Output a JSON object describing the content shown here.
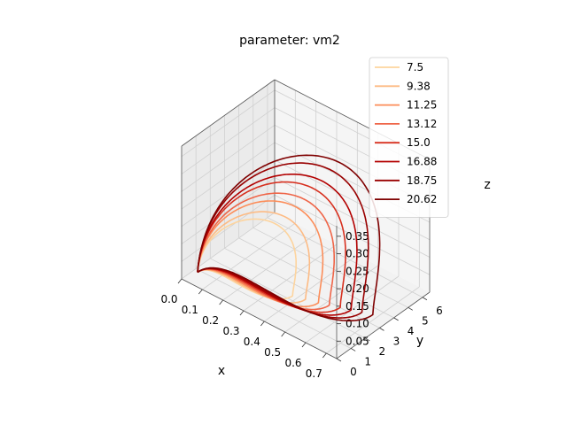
{
  "chart_data": {
    "type": "line",
    "projection": "3d",
    "title": "parameter: vm2",
    "xlabel": "x",
    "ylabel": "y",
    "zlabel": "z",
    "xlim": [
      0.0,
      0.75
    ],
    "ylim": [
      0,
      6.5
    ],
    "zlim": [
      0.0,
      0.38
    ],
    "x_ticks": [
      "0.0",
      "0.1",
      "0.2",
      "0.3",
      "0.4",
      "0.5",
      "0.6",
      "0.7"
    ],
    "y_ticks": [
      "0",
      "1",
      "2",
      "3",
      "4",
      "5",
      "6"
    ],
    "z_ticks": [
      "0.05",
      "0.10",
      "0.15",
      "0.20",
      "0.25",
      "0.30",
      "0.35"
    ],
    "grid": true,
    "legend_position": "top-right",
    "series": [
      {
        "name": "7.5",
        "color": "#fdd49e",
        "x_max": 0.42,
        "y_max": 3.4,
        "z_max": 0.17
      },
      {
        "name": "9.38",
        "color": "#fdbb84",
        "x_max": 0.47,
        "y_max": 3.8,
        "z_max": 0.19
      },
      {
        "name": "11.25",
        "color": "#fc8d59",
        "x_max": 0.52,
        "y_max": 4.2,
        "z_max": 0.22
      },
      {
        "name": "13.12",
        "color": "#ef6548",
        "x_max": 0.56,
        "y_max": 4.6,
        "z_max": 0.24
      },
      {
        "name": "15.0",
        "color": "#d7301f",
        "x_max": 0.6,
        "y_max": 5.0,
        "z_max": 0.27
      },
      {
        "name": "16.88",
        "color": "#b30000",
        "x_max": 0.64,
        "y_max": 5.4,
        "z_max": 0.29
      },
      {
        "name": "18.75",
        "color": "#990000",
        "x_max": 0.68,
        "y_max": 5.8,
        "z_max": 0.32
      },
      {
        "name": "20.62",
        "color": "#7f0000",
        "x_max": 0.72,
        "y_max": 6.2,
        "z_max": 0.34
      }
    ]
  }
}
